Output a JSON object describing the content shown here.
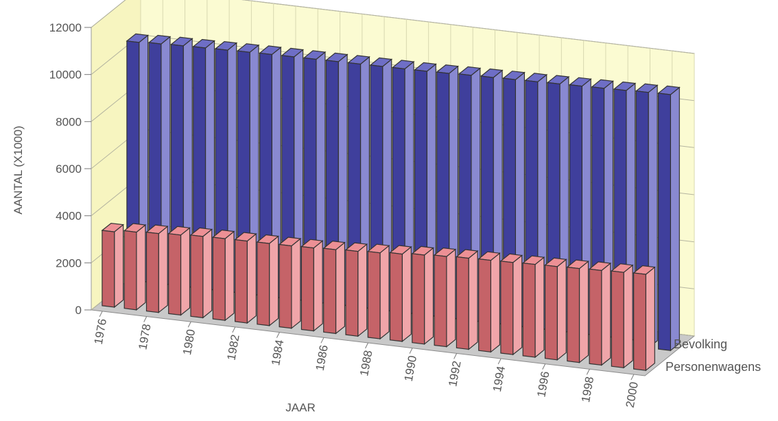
{
  "chart_data": {
    "type": "bar",
    "style": "3d-column",
    "xlabel": "JAAR",
    "ylabel": "AANTAL (X1000)",
    "ylim": [
      0,
      12000
    ],
    "yticks": [
      0,
      2000,
      4000,
      6000,
      8000,
      10000,
      12000
    ],
    "categories": [
      "1976",
      "1977",
      "1978",
      "1979",
      "1980",
      "1981",
      "1982",
      "1983",
      "1984",
      "1985",
      "1986",
      "1987",
      "1988",
      "1989",
      "1990",
      "1991",
      "1992",
      "1993",
      "1994",
      "1995",
      "1996",
      "1997",
      "1998",
      "1999",
      "2000"
    ],
    "x_tick_labels": [
      "1976",
      "1978",
      "1980",
      "1982",
      "1984",
      "1986",
      "1988",
      "1990",
      "1992",
      "1994",
      "1996",
      "1998",
      "2000"
    ],
    "series": [
      {
        "name": "Bevolking",
        "color": "#4a4ab8",
        "values": [
          10400,
          10450,
          10480,
          10500,
          10520,
          10540,
          10560,
          10570,
          10580,
          10590,
          10600,
          10610,
          10620,
          10630,
          10650,
          10680,
          10700,
          10720,
          10740,
          10760,
          10780,
          10800,
          10820,
          10850,
          10870
        ]
      },
      {
        "name": "Personenwagens",
        "color": "#e8747a",
        "values": [
          3200,
          3300,
          3350,
          3400,
          3450,
          3470,
          3480,
          3490,
          3500,
          3520,
          3560,
          3600,
          3650,
          3710,
          3780,
          3830,
          3870,
          3890,
          3910,
          3940,
          3960,
          3990,
          4020,
          4050,
          4080
        ]
      }
    ],
    "grid": true,
    "legend": "depth-axis labels at right"
  }
}
